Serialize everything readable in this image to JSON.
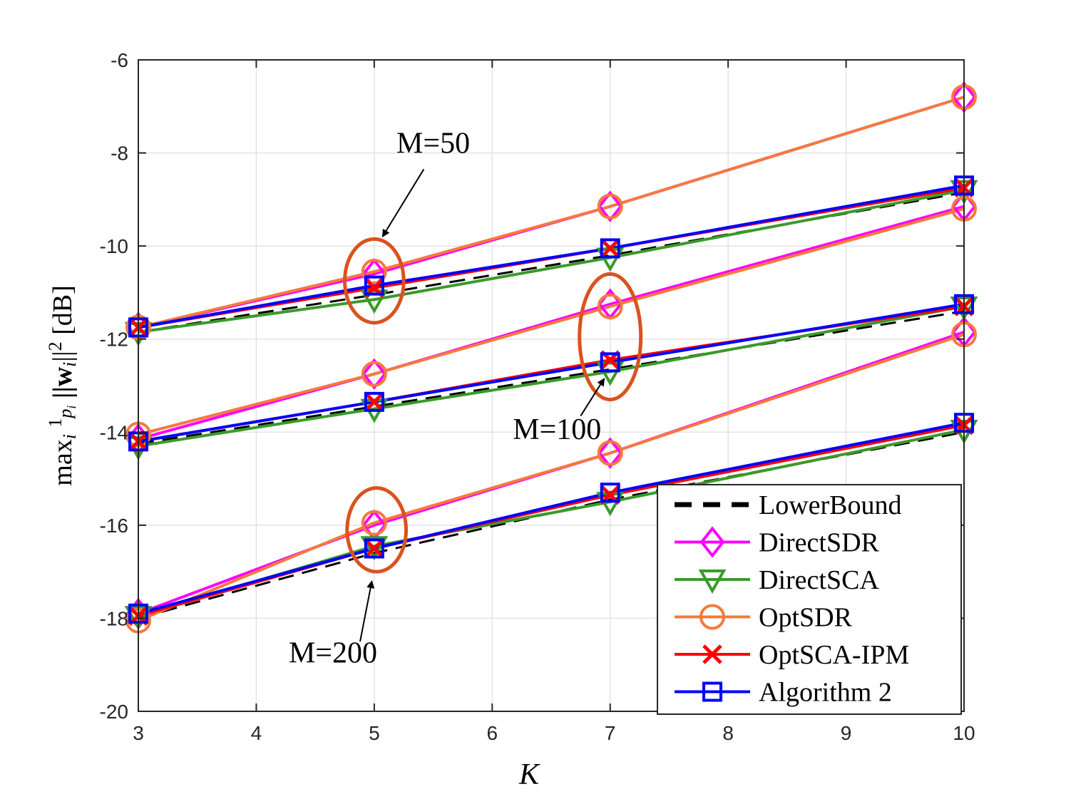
{
  "chart_data": {
    "type": "line",
    "xlabel": "K",
    "ylabel_parts": {
      "max": "max",
      "sub": "i",
      "frac_num": "1",
      "frac_den": "p",
      "frac_den_sub": "i",
      "norm": "||w",
      "norm_sub": "i",
      "norm_end": "||",
      "sup": "2",
      "unit": " [dB]"
    },
    "x": [
      3,
      5,
      7,
      10
    ],
    "xlim": [
      3,
      10
    ],
    "ylim": [
      -20,
      -6
    ],
    "xticks": [
      "3",
      "4",
      "5",
      "6",
      "7",
      "8",
      "9",
      "10"
    ],
    "yticks": [
      "-20",
      "-18",
      "-16",
      "-14",
      "-12",
      "-10",
      "-8",
      "-6"
    ],
    "grid": true,
    "legend_position": "bottom-right",
    "series": [
      {
        "name": "LowerBound",
        "color": "#000000",
        "marker": "none",
        "dash": true,
        "groups": [
          [
            -11.85,
            -11.05,
            -10.2,
            -8.85
          ],
          [
            -14.25,
            -13.45,
            -12.65,
            -11.4
          ],
          [
            -18.0,
            -16.6,
            -15.45,
            -14.0
          ]
        ]
      },
      {
        "name": "DirectSDR",
        "color": "#ff00ff",
        "marker": "diamond",
        "dash": false,
        "groups": [
          [
            -11.75,
            -10.6,
            -9.15,
            -6.8
          ],
          [
            -14.15,
            -12.75,
            -11.25,
            -9.15
          ],
          [
            -17.9,
            -16.0,
            -14.45,
            -11.85
          ]
        ]
      },
      {
        "name": "DirectSCA",
        "color": "#3a9a2a",
        "marker": "triangle-down",
        "dash": false,
        "groups": [
          [
            -11.85,
            -11.15,
            -10.25,
            -8.8
          ],
          [
            -14.3,
            -13.5,
            -12.7,
            -11.3
          ],
          [
            -17.95,
            -16.45,
            -15.5,
            -13.95
          ]
        ]
      },
      {
        "name": "OptSDR",
        "color": "#f47a3c",
        "marker": "circle",
        "dash": false,
        "groups": [
          [
            -11.75,
            -10.55,
            -9.15,
            -6.8
          ],
          [
            -14.05,
            -12.75,
            -11.3,
            -9.2
          ],
          [
            -18.05,
            -15.95,
            -14.45,
            -11.9
          ]
        ]
      },
      {
        "name": "OptSCA-IPM",
        "color": "#ff0000",
        "marker": "x",
        "dash": false,
        "groups": [
          [
            -11.75,
            -10.9,
            -10.05,
            -8.75
          ],
          [
            -14.2,
            -13.35,
            -12.45,
            -11.3
          ],
          [
            -17.95,
            -16.5,
            -15.35,
            -13.85
          ]
        ]
      },
      {
        "name": "Algorithm 2",
        "color": "#0000ff",
        "marker": "square",
        "dash": false,
        "groups": [
          [
            -11.75,
            -10.85,
            -10.05,
            -8.7
          ],
          [
            -14.2,
            -13.35,
            -12.5,
            -11.25
          ],
          [
            -17.9,
            -16.5,
            -15.3,
            -13.8
          ]
        ]
      }
    ],
    "annotations": [
      {
        "text": "M=50",
        "ellipse_center": [
          5,
          -10.75
        ],
        "ellipse_radius": [
          0.25,
          0.9
        ],
        "text_at": [
          5.5,
          -8.0
        ],
        "arrow_from": [
          5.42,
          -8.35
        ],
        "arrow_to": [
          5.07,
          -9.8
        ]
      },
      {
        "text": "M=100",
        "ellipse_center": [
          7,
          -11.95
        ],
        "ellipse_radius": [
          0.26,
          1.35
        ],
        "text_at": [
          6.55,
          -14.15
        ],
        "arrow_from": [
          6.75,
          -13.65
        ],
        "arrow_to": [
          6.95,
          -12.85
        ]
      },
      {
        "text": "M=200",
        "ellipse_center": [
          5.02,
          -16.1
        ],
        "ellipse_radius": [
          0.25,
          0.9
        ],
        "text_at": [
          4.65,
          -18.95
        ],
        "arrow_from": [
          4.88,
          -18.5
        ],
        "arrow_to": [
          4.98,
          -17.2
        ]
      }
    ],
    "annotation_color": "#d9531e"
  }
}
